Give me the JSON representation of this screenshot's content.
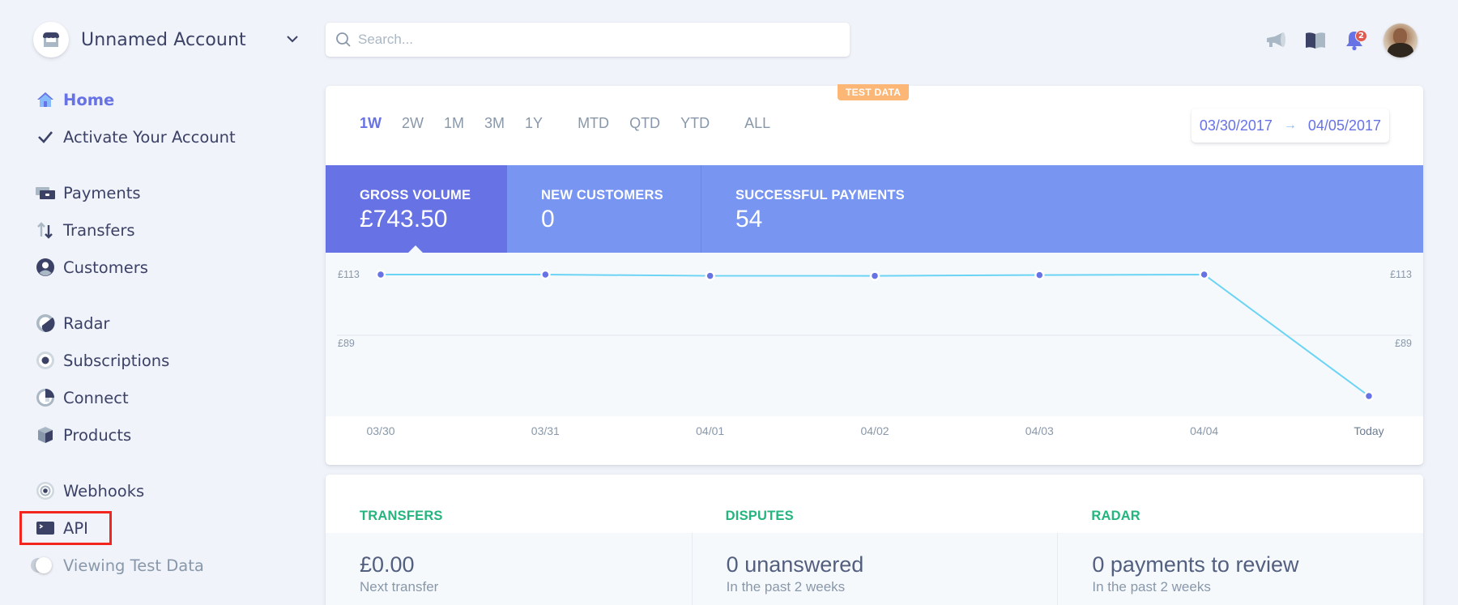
{
  "account": {
    "name": "Unnamed Account"
  },
  "search": {
    "placeholder": "Search..."
  },
  "notifications": {
    "count": "2"
  },
  "sidebar": {
    "items": [
      {
        "label": "Home",
        "icon": "home-icon",
        "active": true
      },
      {
        "label": "Activate Your Account",
        "icon": "check-icon"
      },
      {
        "label": "Payments",
        "icon": "payments-icon"
      },
      {
        "label": "Transfers",
        "icon": "transfers-icon"
      },
      {
        "label": "Customers",
        "icon": "customers-icon"
      },
      {
        "label": "Radar",
        "icon": "radar-icon"
      },
      {
        "label": "Subscriptions",
        "icon": "subscriptions-icon"
      },
      {
        "label": "Connect",
        "icon": "connect-icon"
      },
      {
        "label": "Products",
        "icon": "products-icon"
      },
      {
        "label": "Webhooks",
        "icon": "webhooks-icon"
      },
      {
        "label": "API",
        "icon": "terminal-icon",
        "highlighted": true
      }
    ],
    "test_toggle_label": "Viewing Test Data"
  },
  "dashboard": {
    "test_badge": "TEST DATA",
    "ranges": [
      "1W",
      "2W",
      "1M",
      "3M",
      "1Y",
      "MTD",
      "QTD",
      "YTD",
      "ALL"
    ],
    "active_range": "1W",
    "date_from": "03/30/2017",
    "date_arrow": "→",
    "date_to": "04/05/2017",
    "metrics": [
      {
        "label": "GROSS VOLUME",
        "value": "£743.50"
      },
      {
        "label": "NEW CUSTOMERS",
        "value": "0"
      },
      {
        "label": "SUCCESSFUL PAYMENTS",
        "value": "54"
      }
    ]
  },
  "chart_data": {
    "type": "line",
    "title": "Gross Volume",
    "categories": [
      "03/30",
      "03/31",
      "04/01",
      "04/02",
      "04/03",
      "04/04",
      "Today"
    ],
    "values": [
      113,
      113,
      112.5,
      112.5,
      112.8,
      113,
      65
    ],
    "y_ticks_left": [
      "£113",
      "£89"
    ],
    "y_ticks_right": [
      "£113",
      "£89"
    ],
    "ylim": [
      60,
      120
    ],
    "grid": true,
    "line_color": "#6bd4f4",
    "point_color": "#6772e5"
  },
  "summary": [
    {
      "title": "TRANSFERS",
      "value": "£0.00",
      "sub": "Next transfer"
    },
    {
      "title": "DISPUTES",
      "value": "0 unanswered",
      "sub": "In the past 2 weeks"
    },
    {
      "title": "RADAR",
      "value": "0 payments to review",
      "sub": "In the past 2 weeks"
    }
  ],
  "colors": {
    "accent": "#6772e5",
    "metric_bar": "#7795f1",
    "success": "#24b47e",
    "test_badge": "#fcb776",
    "highlight_box": "#f3261f"
  }
}
